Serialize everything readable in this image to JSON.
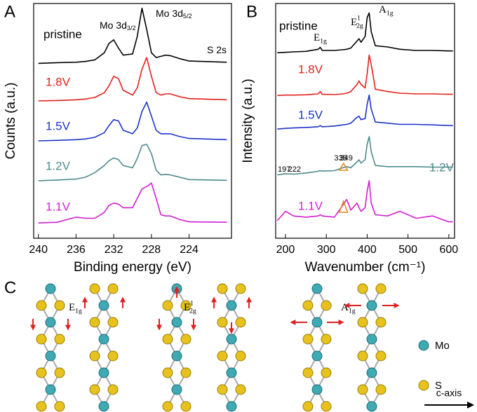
{
  "chart_data": [
    {
      "type": "line",
      "panel_label": "A",
      "xlabel": "Binding energy (eV)",
      "ylabel": "Counts (a.u.)",
      "xlim": [
        240.5,
        219.5
      ],
      "xticks": [
        240,
        236,
        232,
        228,
        224
      ],
      "ylim": [
        0,
        100
      ],
      "x": [
        240,
        238,
        236,
        235,
        234,
        233,
        232.5,
        232,
        231.5,
        231,
        230,
        229.5,
        229,
        228.5,
        228,
        227.5,
        227,
        226.5,
        226,
        225,
        224,
        220
      ],
      "series": [
        {
          "name": "pristine",
          "color": "#000000",
          "values": [
            74.5,
            74.8,
            75,
            75.3,
            76,
            79,
            83,
            84.5,
            81,
            78,
            78.5,
            86,
            98,
            89,
            79,
            77,
            77.5,
            78,
            77.8,
            76.5,
            75.5,
            75
          ]
        },
        {
          "name": "1.8V",
          "color": "#e3201b",
          "values": [
            58.5,
            58.7,
            59,
            59.3,
            60,
            62,
            65,
            69,
            68,
            63,
            61,
            64,
            72,
            77,
            69,
            62,
            61,
            61.5,
            61.5,
            60.3,
            59.5,
            59
          ]
        },
        {
          "name": "1.5V",
          "color": "#1c34c8",
          "values": [
            41.5,
            41.7,
            42,
            42.3,
            43,
            45,
            48,
            50.5,
            50,
            46,
            44.5,
            47,
            54,
            58,
            52,
            46,
            44.5,
            44.5,
            44.5,
            43.3,
            42.5,
            42
          ]
        },
        {
          "name": "1.2V",
          "color": "#4f8a8b",
          "values": [
            24.5,
            24.8,
            25.2,
            26,
            28,
            31,
            33,
            34.2,
            33.5,
            31,
            30,
            34,
            39.5,
            40,
            36,
            29,
            27,
            27.2,
            27,
            26,
            25,
            24.7
          ]
        },
        {
          "name": "1.1V",
          "color": "#d21fd2",
          "values": [
            6.5,
            6.8,
            9,
            8.5,
            8.5,
            11,
            14,
            15,
            14.5,
            13,
            13,
            17,
            21,
            22,
            23.5,
            17,
            10,
            9.5,
            9.5,
            8,
            7,
            6.8
          ]
        }
      ],
      "annotations": [
        {
          "base": "Mo 3d",
          "sub": "3/2"
        },
        {
          "base": "Mo 3d",
          "sub": "5/2"
        },
        {
          "base": "S 2s"
        }
      ]
    },
    {
      "type": "line",
      "panel_label": "B",
      "xlabel": "Wavenumber (cm⁻¹)",
      "ylabel": "Intensity (a.u.)",
      "xlim": [
        176,
        614
      ],
      "xticks": [
        200,
        300,
        400,
        500,
        600
      ],
      "ylim": [
        0,
        100
      ],
      "x": [
        180,
        200,
        220,
        250,
        280,
        285,
        290,
        320,
        340,
        350,
        360,
        375,
        380,
        385,
        395,
        400,
        405,
        410,
        420,
        450,
        480,
        520,
        560,
        600,
        610
      ],
      "series": [
        {
          "name": "pristine",
          "color": "#000000",
          "values": [
            79,
            79.2,
            79.4,
            79.6,
            80.5,
            81.3,
            80,
            80,
            80.3,
            80.5,
            81,
            84,
            85,
            83.5,
            86,
            94,
            96,
            88,
            82,
            81.5,
            80.5,
            80,
            80,
            79.8,
            79.8
          ]
        },
        {
          "name": "1.8V",
          "color": "#e3201b",
          "values": [
            60.8,
            61,
            61,
            61.1,
            61.5,
            62.5,
            61.3,
            61.2,
            61.5,
            61.8,
            62.5,
            65.5,
            67,
            65.5,
            64,
            70,
            78,
            74,
            63.5,
            62.5,
            61.8,
            61.5,
            61.5,
            61.3,
            61.3
          ]
        },
        {
          "name": "1.5V",
          "color": "#1c34c8",
          "values": [
            46.5,
            46.8,
            47,
            47.2,
            47.5,
            48,
            47.5,
            47.8,
            48.3,
            48.5,
            49,
            51.5,
            52,
            50.5,
            51,
            57,
            61,
            55,
            49.5,
            49,
            48.5,
            48.5,
            48.3,
            48,
            48
          ]
        },
        {
          "name": "1.2V",
          "color": "#4f8a8b",
          "values": [
            27,
            27.5,
            27.3,
            27.8,
            28.5,
            28.8,
            28.6,
            28.8,
            30,
            30.5,
            30,
            32.5,
            33.4,
            32,
            33.5,
            40,
            43.3,
            37,
            31,
            30.5,
            30.5,
            30.5,
            30.3,
            30.3,
            30.3
          ]
        },
        {
          "name": "1.1V",
          "color": "#d21fd2",
          "values": [
            7.5,
            11.5,
            9.5,
            9,
            9.5,
            10,
            9.5,
            9,
            14,
            16.5,
            12,
            15,
            13,
            11.5,
            13,
            20,
            24.5,
            15,
            10,
            9.5,
            11.5,
            8.5,
            9.5,
            7,
            7
          ]
        }
      ],
      "annotations": [
        {
          "base": "E",
          "sub": "1g"
        },
        {
          "base": "E",
          "sup": "1",
          "sub": "2g"
        },
        {
          "base": "A",
          "sub": "1g"
        }
      ],
      "peak_labels": [
        197,
        222,
        335,
        349
      ]
    }
  ],
  "panel_c": {
    "panel_label": "C",
    "modes": [
      {
        "base": "E",
        "sub": "1g"
      },
      {
        "base": "E",
        "sup": "1",
        "sub": "2g"
      },
      {
        "base": "A",
        "sub": "1g"
      }
    ],
    "legend": [
      "Mo",
      "S"
    ],
    "axis_label": "c-axis"
  }
}
